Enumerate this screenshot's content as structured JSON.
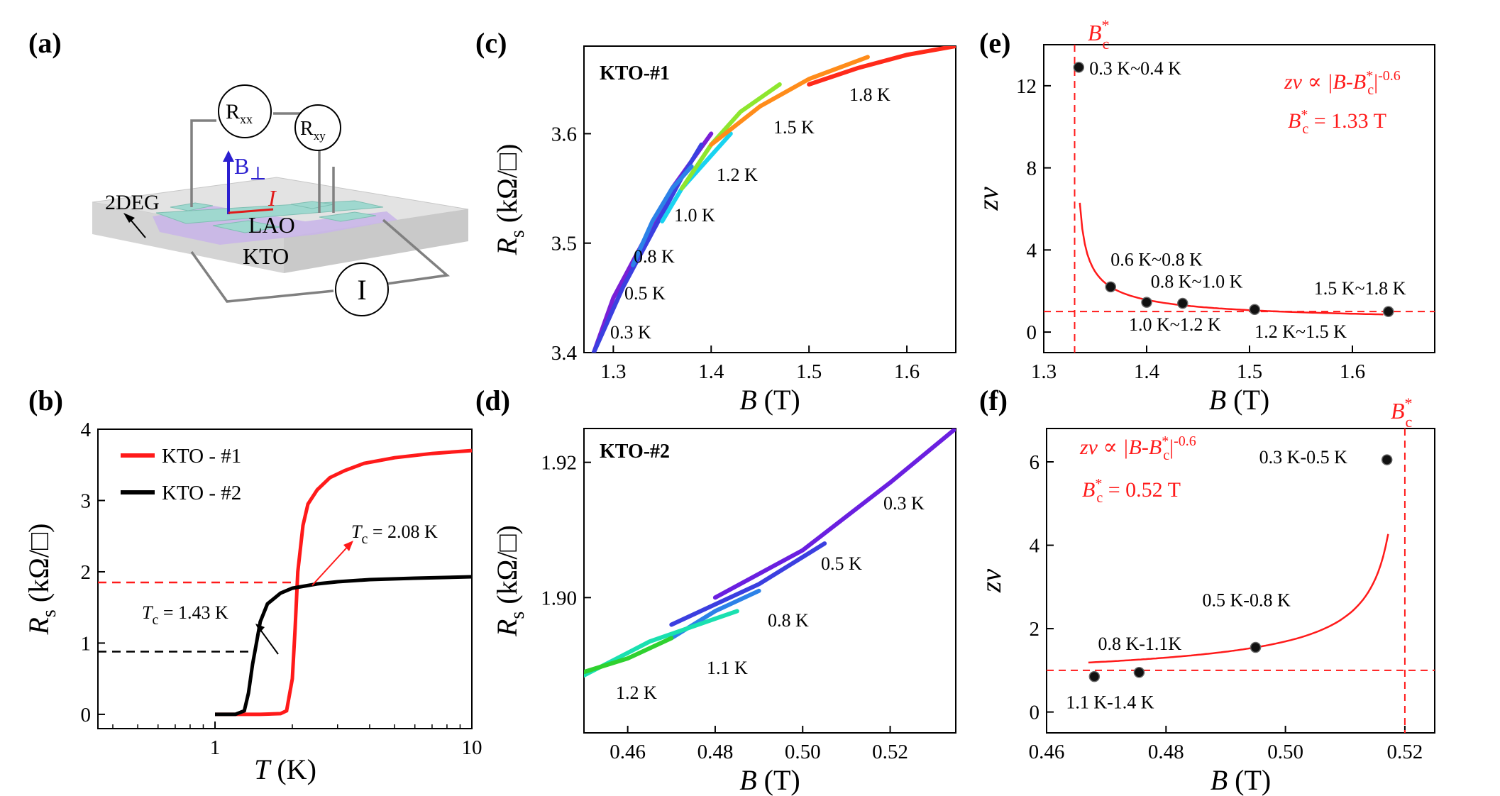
{
  "chart_data": [
    {
      "panel": "(a)",
      "type": "diagram",
      "labels": {
        "rxx": "R",
        "rxx_sub": "xx",
        "rxy": "R",
        "rxy_sub": "xy",
        "bfield": "B",
        "bfield_sym": "⊥",
        "current": "I",
        "twodeg": "2DEG",
        "lao": "LAO",
        "kto": "KTO",
        "source": "I"
      }
    },
    {
      "panel": "(b)",
      "type": "line",
      "xscale": "log",
      "xlim": [
        0.35,
        10
      ],
      "ylim": [
        -0.2,
        4
      ],
      "xlabel": "T (K)",
      "ylabel": "R_s (kΩ/□)",
      "xticks": [
        1,
        10
      ],
      "yticks": [
        0,
        1,
        2,
        3,
        4
      ],
      "series": [
        {
          "name": "KTO - #1",
          "color": "#ff1a1a",
          "x": [
            0.3,
            1.0,
            1.5,
            1.8,
            1.9,
            2.0,
            2.05,
            2.1,
            2.2,
            2.3,
            2.5,
            2.8,
            3.2,
            3.8,
            5,
            7,
            10
          ],
          "y": [
            0,
            0,
            0,
            0.01,
            0.05,
            0.5,
            1.2,
            2.0,
            2.65,
            2.95,
            3.15,
            3.32,
            3.42,
            3.52,
            3.6,
            3.66,
            3.7
          ]
        },
        {
          "name": "KTO - #2",
          "color": "#000000",
          "x": [
            0.3,
            1.0,
            1.2,
            1.3,
            1.35,
            1.4,
            1.45,
            1.5,
            1.6,
            1.8,
            2.0,
            2.5,
            3,
            4,
            6,
            10
          ],
          "y": [
            0,
            0,
            0,
            0.05,
            0.3,
            0.7,
            1.0,
            1.3,
            1.55,
            1.7,
            1.77,
            1.83,
            1.86,
            1.89,
            1.91,
            1.93
          ]
        }
      ],
      "annotations": [
        {
          "prefix": "T",
          "sub": "c",
          "text": " = 2.08 K",
          "color": "#ff1a1a"
        },
        {
          "prefix": "T",
          "sub": "c",
          "text": " = 1.43 K",
          "color": "#000000"
        }
      ],
      "dashed_levels": [
        {
          "y": 1.85,
          "x_end": 2.08,
          "color": "#ff1a1a"
        },
        {
          "y": 0.88,
          "x_end": 1.43,
          "color": "#000000"
        }
      ]
    },
    {
      "panel": "(c)",
      "type": "line",
      "title": "KTO-#1",
      "xlim": [
        1.27,
        1.65
      ],
      "ylim": [
        3.4,
        3.68
      ],
      "xlabel": "B (T)",
      "ylabel": "R_s (kΩ/□)",
      "xticks": [
        1.3,
        1.4,
        1.5,
        1.6
      ],
      "yticks": [
        3.4,
        3.5,
        3.6
      ],
      "series": [
        {
          "name": "0.3 K",
          "color": "#7a1fd6",
          "x": [
            1.28,
            1.3,
            1.33,
            1.36,
            1.4
          ],
          "y": [
            3.4,
            3.45,
            3.5,
            3.55,
            3.6
          ]
        },
        {
          "name": "0.5 K",
          "color": "#3b3fe0",
          "x": [
            1.28,
            1.31,
            1.34,
            1.37,
            1.39
          ],
          "y": [
            3.4,
            3.46,
            3.51,
            3.56,
            3.59
          ]
        },
        {
          "name": "0.8 K",
          "color": "#2c82e8",
          "x": [
            1.32,
            1.34,
            1.36,
            1.38
          ],
          "y": [
            3.48,
            3.52,
            3.55,
            3.57
          ]
        },
        {
          "name": "1.0 K",
          "color": "#19d3f0",
          "x": [
            1.35,
            1.37,
            1.4,
            1.42
          ],
          "y": [
            3.52,
            3.55,
            3.58,
            3.6
          ]
        },
        {
          "name": "1.2 K",
          "color": "#8ee62e",
          "x": [
            1.37,
            1.4,
            1.43,
            1.47
          ],
          "y": [
            3.55,
            3.59,
            3.62,
            3.645
          ]
        },
        {
          "name": "1.5 K",
          "color": "#ff8c1a",
          "x": [
            1.4,
            1.45,
            1.5,
            1.56
          ],
          "y": [
            3.59,
            3.625,
            3.65,
            3.67
          ]
        },
        {
          "name": "1.8 K",
          "color": "#ff2a1a",
          "x": [
            1.5,
            1.55,
            1.6,
            1.65
          ],
          "y": [
            3.645,
            3.66,
            3.672,
            3.68
          ]
        }
      ]
    },
    {
      "panel": "(d)",
      "type": "line",
      "title": "KTO-#2",
      "xlim": [
        0.45,
        0.535
      ],
      "ylim": [
        1.88,
        1.925
      ],
      "xlabel": "B (T)",
      "ylabel": "R_s (kΩ/□)",
      "xticks": [
        0.46,
        0.48,
        0.5,
        0.52
      ],
      "yticks": [
        1.9,
        1.92
      ],
      "series": [
        {
          "name": "0.3 K",
          "color": "#6a1fe0",
          "x": [
            0.48,
            0.5,
            0.52,
            0.535
          ],
          "y": [
            1.9,
            1.907,
            1.917,
            1.925
          ]
        },
        {
          "name": "0.5 K",
          "color": "#3b3fe0",
          "x": [
            0.47,
            0.49,
            0.505
          ],
          "y": [
            1.896,
            1.902,
            1.908
          ]
        },
        {
          "name": "0.8 K",
          "color": "#2c82e8",
          "x": [
            0.47,
            0.48,
            0.49
          ],
          "y": [
            1.894,
            1.898,
            1.901
          ]
        },
        {
          "name": "1.1 K",
          "color": "#1ae0b0",
          "x": [
            0.45,
            0.465,
            0.485
          ],
          "y": [
            1.8885,
            1.8935,
            1.898
          ]
        },
        {
          "name": "1.2 K",
          "color": "#2fd12f",
          "x": [
            0.45,
            0.46,
            0.47
          ],
          "y": [
            1.889,
            1.891,
            1.894
          ]
        }
      ]
    },
    {
      "panel": "(e)",
      "type": "scatter",
      "xlim": [
        1.3,
        1.68
      ],
      "ylim": [
        -1,
        14
      ],
      "xlabel": "B (T)",
      "ylabel": "zν",
      "xticks": [
        1.3,
        1.4,
        1.5,
        1.6
      ],
      "yticks": [
        0,
        4,
        8,
        12
      ],
      "points": [
        {
          "x": 1.334,
          "y": 12.9,
          "label": "0.3 K~0.4 K"
        },
        {
          "x": 1.365,
          "y": 2.2,
          "label": "0.6 K~0.8 K"
        },
        {
          "x": 1.4,
          "y": 1.45,
          "label": "1.0 K~1.2 K"
        },
        {
          "x": 1.435,
          "y": 1.4,
          "label": "0.8 K~1.0 K"
        },
        {
          "x": 1.505,
          "y": 1.1,
          "label": "1.2 K~1.5 K"
        },
        {
          "x": 1.635,
          "y": 1.0,
          "label": "1.5 K~1.8 K"
        }
      ],
      "fit": {
        "bc": 1.33,
        "exponent": -0.6,
        "x_from": 1.335,
        "x_to": 1.63,
        "y_asym": 0.5
      },
      "vline_label": {
        "prefix": "B",
        "sup": "*",
        "sub": "c"
      },
      "hline_y": 1,
      "formula": {
        "text1": "zν ∝ |B-B",
        "sup": "*",
        "sub": "c",
        "text2": "|",
        "exp": "-0.6"
      },
      "bc_value": {
        "prefix": "B",
        "sup": "*",
        "sub": "c",
        "text": " = 1.33 T"
      }
    },
    {
      "panel": "(f)",
      "type": "scatter",
      "xlim": [
        0.46,
        0.525
      ],
      "ylim": [
        -0.5,
        6.8
      ],
      "xlabel": "B (T)",
      "ylabel": "zν",
      "xticks": [
        0.46,
        0.48,
        0.5,
        0.52
      ],
      "yticks": [
        0,
        2,
        4,
        6
      ],
      "points": [
        {
          "x": 0.468,
          "y": 0.85,
          "label": "1.1 K-1.4 K"
        },
        {
          "x": 0.4755,
          "y": 0.95,
          "label": "0.8 K-1.1K"
        },
        {
          "x": 0.495,
          "y": 1.55,
          "label": "0.5 K-0.8 K"
        },
        {
          "x": 0.517,
          "y": 6.05,
          "label": "0.3 K-0.5 K"
        }
      ],
      "fit": {
        "bc": 0.52,
        "exponent": -0.6,
        "x_from": 0.467,
        "x_to": 0.5172
      },
      "vline_label": {
        "prefix": "B",
        "sup": "*",
        "sub": "c"
      },
      "hline_y": 1,
      "formula": {
        "text1": "zν ∝ |B-B",
        "sup": "*",
        "sub": "c",
        "text2": "|",
        "exp": "-0.6"
      },
      "bc_value": {
        "prefix": "B",
        "sup": "*",
        "sub": "c",
        "text": " = 0.52 T"
      }
    }
  ]
}
